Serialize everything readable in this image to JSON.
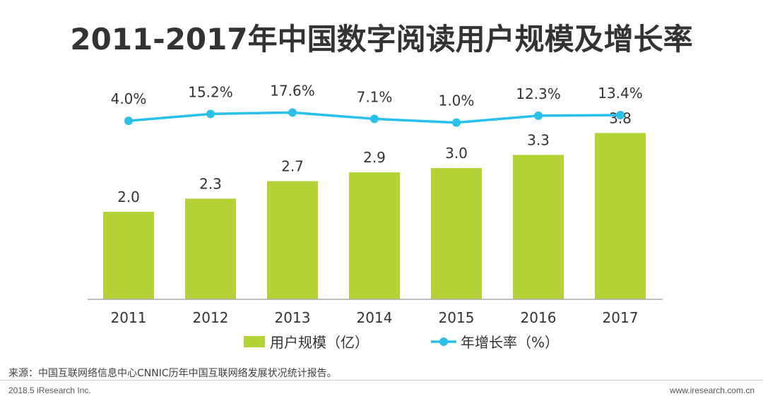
{
  "page": {
    "source": "来源：中国互联网络信息中心CNNIC历年中国互联网络发展状况统计报告。",
    "footer_left": "2018.5 iResearch Inc.",
    "footer_right": "www.iresearch.com.cn"
  },
  "colors": {
    "bar": "#b2d235",
    "line": "#29c0ea",
    "text": "#333333",
    "axis": "#aaaaaa"
  },
  "chart_data": {
    "type": "bar",
    "title": "2011-2017年中国数字阅读用户规模及增长率",
    "categories": [
      "2011",
      "2012",
      "2013",
      "2014",
      "2015",
      "2016",
      "2017"
    ],
    "series": [
      {
        "name": "用户规模（亿）",
        "type": "bar",
        "values": [
          2.0,
          2.3,
          2.7,
          2.9,
          3.0,
          3.3,
          3.8
        ],
        "labels": [
          "2.0",
          "2.3",
          "2.7",
          "2.9",
          "3.0",
          "3.3",
          "3.8"
        ]
      },
      {
        "name": "年增长率（%）",
        "type": "line",
        "values": [
          4.0,
          15.2,
          17.6,
          7.1,
          1.0,
          12.3,
          13.4
        ],
        "labels": [
          "4.0%",
          "15.2%",
          "17.6%",
          "7.1%",
          "1.0%",
          "12.3%",
          "13.4%"
        ]
      }
    ],
    "ylim": [
      0,
      4.0
    ],
    "y2lim": [
      -150,
      40
    ],
    "legend": "bottom-center",
    "grid": false,
    "xlabel": "",
    "ylabel": ""
  }
}
